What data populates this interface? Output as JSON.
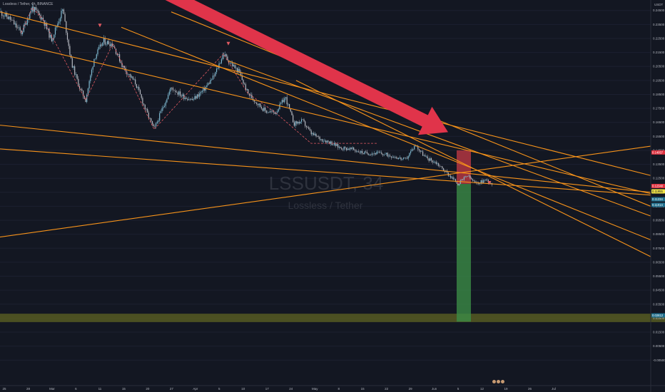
{
  "header": {
    "symbol_line": "Lossless / Tether, 4h, BINANCE"
  },
  "watermark": {
    "symbol": "LSSUSDT, 34",
    "name": "Lossless / Tether"
  },
  "colors": {
    "background": "#131722",
    "trendline": "#f7931a",
    "candle_up": "#7fbad1",
    "candle_down": "#b5b8c0",
    "zigzag": "#e05a61",
    "arrow": "#e0344a",
    "loss_zone": "#cf3b47",
    "profit_zone": "#3b8d47",
    "support_zone": "#565b22",
    "label_red": "#e03240",
    "label_yellow": "#f3e547",
    "label_blue": "#1f6e8c",
    "axis_text": "#b2b5be"
  },
  "chart_data": {
    "type": "candlestick",
    "symbol": "LSSUSDT",
    "interval": "4h",
    "y_axis": {
      "currency": "USDT",
      "ylim": [
        -0.0125,
        0.2525
      ],
      "ticks": [
        "0.24500",
        "0.23500",
        "0.22500",
        "0.21500",
        "0.20500",
        "0.19500",
        "0.18500",
        "0.17500",
        "0.16500",
        "0.15500",
        "0.14500",
        "0.13500",
        "0.12500",
        "0.11500",
        "0.10500",
        "0.09500",
        "0.08500",
        "0.07500",
        "0.06500",
        "0.05500",
        "0.04500",
        "0.03500",
        "0.02500",
        "0.01500",
        "0.00500",
        "-0.00500"
      ]
    },
    "x_axis": {
      "ticks": [
        "25",
        "28",
        "Mar",
        "6",
        "11",
        "15",
        "20",
        "27",
        "Apr",
        "5",
        "10",
        "17",
        "24",
        "May",
        "8",
        "15",
        "22",
        "29",
        "Jun",
        "5",
        "12",
        "19",
        "26",
        "Jul"
      ]
    },
    "price_path": [
      [
        0,
        0.244
      ],
      [
        14,
        0.239
      ],
      [
        30,
        0.229
      ],
      [
        45,
        0.247
      ],
      [
        60,
        0.239
      ],
      [
        72,
        0.224
      ],
      [
        88,
        0.246
      ],
      [
        100,
        0.208
      ],
      [
        112,
        0.189
      ],
      [
        120,
        0.181
      ],
      [
        132,
        0.211
      ],
      [
        145,
        0.223
      ],
      [
        158,
        0.221
      ],
      [
        172,
        0.205
      ],
      [
        190,
        0.193
      ],
      [
        205,
        0.173
      ],
      [
        216,
        0.16
      ],
      [
        226,
        0.173
      ],
      [
        240,
        0.19
      ],
      [
        255,
        0.184
      ],
      [
        270,
        0.181
      ],
      [
        285,
        0.188
      ],
      [
        300,
        0.198
      ],
      [
        313,
        0.214
      ],
      [
        322,
        0.208
      ],
      [
        335,
        0.201
      ],
      [
        347,
        0.186
      ],
      [
        358,
        0.18
      ],
      [
        372,
        0.173
      ],
      [
        386,
        0.172
      ],
      [
        400,
        0.183
      ],
      [
        412,
        0.164
      ],
      [
        424,
        0.166
      ],
      [
        436,
        0.157
      ],
      [
        450,
        0.153
      ],
      [
        462,
        0.151
      ],
      [
        476,
        0.147
      ],
      [
        492,
        0.146
      ],
      [
        510,
        0.143
      ],
      [
        530,
        0.143
      ],
      [
        550,
        0.141
      ],
      [
        568,
        0.138
      ],
      [
        582,
        0.149
      ],
      [
        596,
        0.14
      ],
      [
        612,
        0.136
      ],
      [
        628,
        0.128
      ],
      [
        642,
        0.121
      ],
      [
        655,
        0.127
      ],
      [
        667,
        0.121
      ],
      [
        681,
        0.124
      ],
      [
        690,
        0.121
      ]
    ],
    "zigzag_points": [
      [
        30,
        0.229
      ],
      [
        45,
        0.247
      ],
      [
        60,
        0.239
      ],
      [
        120,
        0.181
      ],
      [
        158,
        0.221
      ],
      [
        216,
        0.16
      ],
      [
        313,
        0.214
      ],
      [
        347,
        0.186
      ],
      [
        386,
        0.172
      ],
      [
        436,
        0.15
      ],
      [
        530,
        0.15
      ]
    ],
    "trendlines": [
      {
        "p1": [
          0,
          0.244
        ],
        "p2": [
          912,
          0.127
        ]
      },
      {
        "p1": [
          0,
          0.224
        ],
        "p2": [
          912,
          0.114
        ]
      },
      {
        "p1": [
          0,
          0.163
        ],
        "p2": [
          912,
          0.115
        ]
      },
      {
        "p1": [
          0,
          0.146
        ],
        "p2": [
          912,
          0.113
        ]
      },
      {
        "p1": [
          0,
          0.083
        ],
        "p2": [
          912,
          0.148
        ]
      },
      {
        "p1": [
          170,
          0.233
        ],
        "p2": [
          912,
          0.081
        ]
      },
      {
        "p1": [
          240,
          0.244
        ],
        "p2": [
          912,
          0.105
        ]
      },
      {
        "p1": [
          320,
          0.209
        ],
        "p2": [
          912,
          0.098
        ]
      },
      {
        "p1": [
          415,
          0.195
        ],
        "p2": [
          912,
          0.069
        ]
      }
    ],
    "position": {
      "entry": 0.121,
      "stop": 0.145,
      "target": 0.0225,
      "x_range": [
        640,
        660
      ]
    },
    "support_zone": [
      0.0222,
      0.0282
    ],
    "arrow": {
      "from": [
        232,
        0.2575
      ],
      "to": [
        628,
        0.158
      ]
    },
    "markers": [
      {
        "x": 140,
        "y": 0.234,
        "direction": "down"
      },
      {
        "x": 320,
        "y": 0.221,
        "direction": "down"
      },
      {
        "x": 686,
        "y": 0.1215,
        "direction": "down"
      }
    ],
    "price_labels": [
      {
        "text": "0.14057",
        "y": 0.1435,
        "style": "red"
      },
      {
        "text": "0.12340",
        "y": 0.1195,
        "style": "red"
      },
      {
        "text": "0.11955",
        "y": 0.1157,
        "style": "yellow"
      },
      {
        "text": "0.11234",
        "y": 0.11,
        "style": "blue"
      },
      {
        "text": "0.11014",
        "y": 0.106,
        "style": "blue"
      },
      {
        "text": "0.02812",
        "y": 0.027,
        "style": "blue"
      }
    ]
  }
}
